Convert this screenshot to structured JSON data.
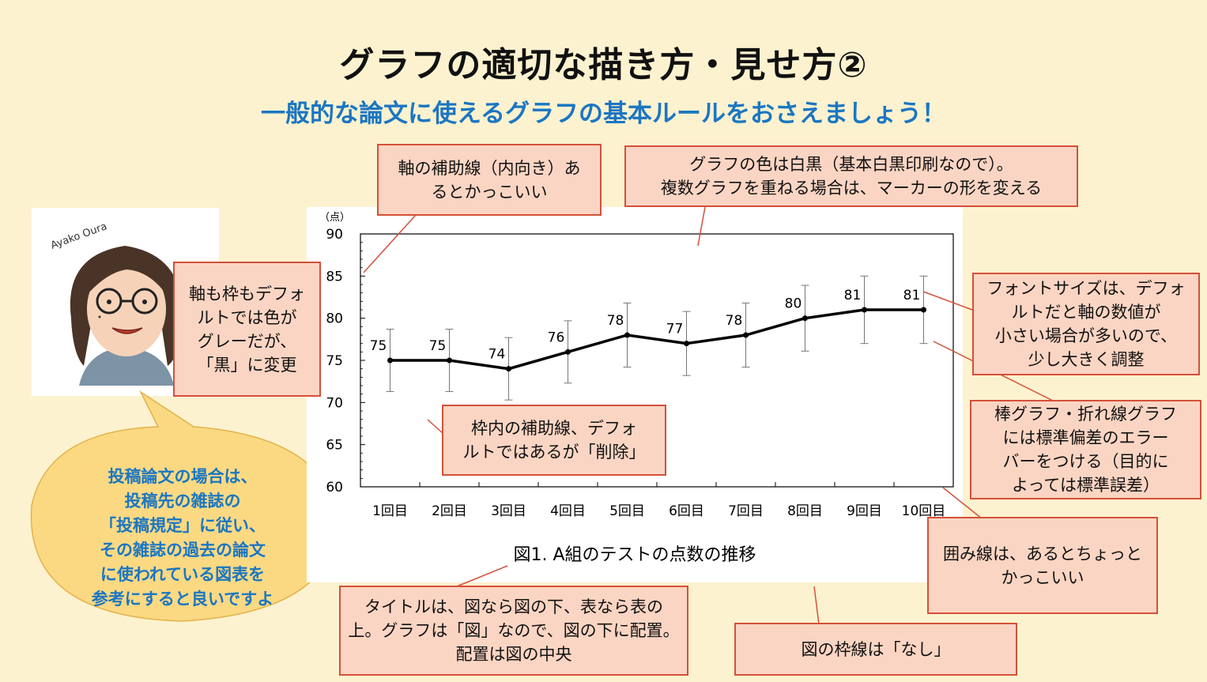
{
  "slide": {
    "title": "グラフの適切な描き方・見せ方②",
    "subtitle": "一般的な論文に使えるグラフの基本ルールをおさえましょう！",
    "colors": {
      "background": "#fdf2cf",
      "callout_fill": "#fbd5c3",
      "callout_border": "#d4503a",
      "accent_blue": "#1b76c2",
      "bubble_fill": "#fbd983"
    }
  },
  "portrait": {
    "signature": "Ayako Oura"
  },
  "callouts": {
    "axis_minor_ticks": "軸の補助線（内向き）あ\nるとかっこいい",
    "graph_color": "グラフの色は白黒（基本白黒印刷なので）。\n複数グラフを重ねる場合は、マーカーの形を変える",
    "axis_frame_color": "軸も枠もデフォ\nルトでは色が\nグレーだが、\n「黒」に変更",
    "font_size": "フォントサイズは、デフォ\nルトだと軸の数値が\n小さい場合が多いので、\n少し大きく調整",
    "gridlines": "枠内の補助線、デフォ\nルトではあるが「削除」",
    "error_bars": "棒グラフ・折れ線グラフ\nには標準偏差のエラー\nバーをつける（目的に\nよっては標準誤差）",
    "frame_line": "囲み線は、あるとちょっと\nかっこいい",
    "title_position": "タイトルは、図なら図の下、表なら表の\n上。グラフは「図」なので、図の下に配置。\n配置は図の中央",
    "figure_border": "図の枠線は「なし」"
  },
  "bubble": {
    "text": "投稿論文の場合は、\n投稿先の雑誌の\n「投稿規定」に従い、\nその雑誌の過去の論文\nに使われている図表を\n参考にすると良いですよ"
  },
  "chart_data": {
    "type": "line",
    "title": "図1. A組のテストの点数の推移",
    "ylabel": "（点）",
    "xlabel": "",
    "categories": [
      "1回目",
      "2回目",
      "3回目",
      "4回目",
      "5回目",
      "6回目",
      "7回目",
      "8回目",
      "9回目",
      "10回目"
    ],
    "series": [
      {
        "values": [
          75,
          75,
          74,
          76,
          78,
          77,
          78,
          80,
          81,
          81
        ],
        "error": [
          3.7,
          3.7,
          3.7,
          3.7,
          3.8,
          3.8,
          3.8,
          3.9,
          4.0,
          4.0
        ]
      }
    ],
    "data_labels": [
      "75",
      "75",
      "74",
      "76",
      "78",
      "77",
      "78",
      "80",
      "81",
      "81"
    ],
    "ylim": [
      60,
      90
    ],
    "yticks": [
      "60",
      "65",
      "70",
      "75",
      "80",
      "85",
      "90"
    ],
    "grid": false,
    "legend": "none",
    "line_color": "#000000"
  }
}
